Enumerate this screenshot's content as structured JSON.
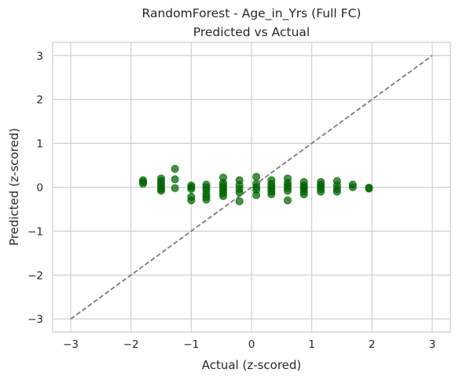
{
  "chart_data": {
    "type": "scatter",
    "title": "RandomForest - Age_in_Yrs (Full FC)",
    "subtitle": "Predicted vs Actual",
    "xlabel": "Actual (z-scored)",
    "ylabel": "Predicted (z-scored)",
    "xlim": [
      -3.3,
      3.3
    ],
    "ylim": [
      -3.3,
      3.3
    ],
    "xticks": [
      -3,
      -2,
      -1,
      0,
      1,
      2,
      3
    ],
    "yticks": [
      -3,
      -2,
      -1,
      0,
      1,
      2,
      3
    ],
    "xtick_labels": [
      "−3",
      "−2",
      "−1",
      "0",
      "1",
      "2",
      "3"
    ],
    "ytick_labels": [
      "−3",
      "−2",
      "−1",
      "0",
      "1",
      "2",
      "3"
    ],
    "grid": true,
    "marker_color": "#006400",
    "line_color": "#7a7a7a",
    "identity_line": {
      "x": [
        -3,
        3
      ],
      "y": [
        -3,
        3
      ],
      "style": "dashed"
    },
    "points": [
      {
        "x": -1.8,
        "y": 0.16
      },
      {
        "x": -1.8,
        "y": 0.12
      },
      {
        "x": -1.8,
        "y": 0.08
      },
      {
        "x": -1.5,
        "y": 0.2
      },
      {
        "x": -1.5,
        "y": 0.14
      },
      {
        "x": -1.5,
        "y": 0.08
      },
      {
        "x": -1.5,
        "y": 0.02
      },
      {
        "x": -1.5,
        "y": -0.04
      },
      {
        "x": -1.5,
        "y": -0.08
      },
      {
        "x": -1.27,
        "y": 0.42
      },
      {
        "x": -1.27,
        "y": 0.18
      },
      {
        "x": -1.27,
        "y": -0.02
      },
      {
        "x": -1.0,
        "y": 0.04
      },
      {
        "x": -1.0,
        "y": 0.0
      },
      {
        "x": -1.0,
        "y": -0.04
      },
      {
        "x": -1.0,
        "y": -0.22
      },
      {
        "x": -1.0,
        "y": -0.3
      },
      {
        "x": -0.75,
        "y": 0.06
      },
      {
        "x": -0.75,
        "y": 0.0
      },
      {
        "x": -0.75,
        "y": -0.06
      },
      {
        "x": -0.75,
        "y": -0.15
      },
      {
        "x": -0.75,
        "y": -0.22
      },
      {
        "x": -0.75,
        "y": -0.28
      },
      {
        "x": -0.47,
        "y": 0.22
      },
      {
        "x": -0.47,
        "y": 0.1
      },
      {
        "x": -0.47,
        "y": 0.04
      },
      {
        "x": -0.47,
        "y": -0.02
      },
      {
        "x": -0.47,
        "y": -0.08
      },
      {
        "x": -0.47,
        "y": -0.14
      },
      {
        "x": -0.47,
        "y": -0.2
      },
      {
        "x": -0.2,
        "y": 0.16
      },
      {
        "x": -0.2,
        "y": 0.05
      },
      {
        "x": -0.2,
        "y": -0.04
      },
      {
        "x": -0.2,
        "y": -0.12
      },
      {
        "x": -0.2,
        "y": -0.32
      },
      {
        "x": 0.08,
        "y": 0.24
      },
      {
        "x": 0.08,
        "y": 0.08
      },
      {
        "x": 0.08,
        "y": 0.0
      },
      {
        "x": 0.08,
        "y": -0.06
      },
      {
        "x": 0.08,
        "y": -0.18
      },
      {
        "x": 0.33,
        "y": 0.16
      },
      {
        "x": 0.33,
        "y": 0.08
      },
      {
        "x": 0.33,
        "y": 0.02
      },
      {
        "x": 0.33,
        "y": -0.04
      },
      {
        "x": 0.33,
        "y": -0.1
      },
      {
        "x": 0.33,
        "y": -0.16
      },
      {
        "x": 0.6,
        "y": 0.2
      },
      {
        "x": 0.6,
        "y": 0.1
      },
      {
        "x": 0.6,
        "y": 0.04
      },
      {
        "x": 0.6,
        "y": -0.02
      },
      {
        "x": 0.6,
        "y": -0.08
      },
      {
        "x": 0.6,
        "y": -0.3
      },
      {
        "x": 0.87,
        "y": 0.12
      },
      {
        "x": 0.87,
        "y": 0.04
      },
      {
        "x": 0.87,
        "y": 0.0
      },
      {
        "x": 0.87,
        "y": -0.04
      },
      {
        "x": 0.87,
        "y": -0.1
      },
      {
        "x": 0.87,
        "y": -0.16
      },
      {
        "x": 1.15,
        "y": 0.12
      },
      {
        "x": 1.15,
        "y": 0.06
      },
      {
        "x": 1.15,
        "y": 0.02
      },
      {
        "x": 1.15,
        "y": -0.04
      },
      {
        "x": 1.15,
        "y": -0.1
      },
      {
        "x": 1.42,
        "y": 0.14
      },
      {
        "x": 1.42,
        "y": 0.04
      },
      {
        "x": 1.42,
        "y": -0.04
      },
      {
        "x": 1.42,
        "y": -0.1
      },
      {
        "x": 1.68,
        "y": 0.06
      },
      {
        "x": 1.68,
        "y": 0.0
      },
      {
        "x": 1.95,
        "y": -0.01
      },
      {
        "x": 1.95,
        "y": -0.03
      }
    ]
  }
}
